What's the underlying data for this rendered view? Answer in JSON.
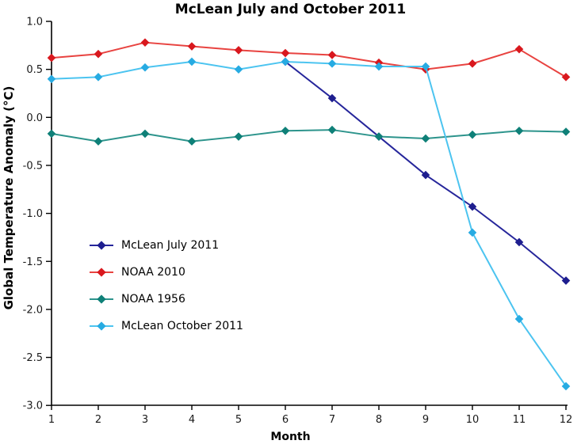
{
  "title": "McLean July and October 2011",
  "axes": {
    "x_label": "Month",
    "y_label": "Global Temperature Anomaly (°C)",
    "x_ticks": [
      "1",
      "2",
      "3",
      "4",
      "5",
      "6",
      "7",
      "8",
      "9",
      "10",
      "11",
      "12"
    ],
    "y_ticks": [
      "1.0",
      "0.5",
      "0.0",
      "-0.5",
      "-1.0",
      "-1.5",
      "-2.0",
      "-2.5",
      "-3.0"
    ]
  },
  "colors": {
    "background": "#ffffff",
    "axis": "#000000",
    "tick_label": "#1a1a1a",
    "title_text": "#000000"
  },
  "chart_data": {
    "type": "line",
    "title": "McLean July and October 2011",
    "xlabel": "Month",
    "ylabel": "Global Temperature Anomaly (°C)",
    "xlim": [
      1,
      12
    ],
    "ylim": [
      -3.0,
      1.0
    ],
    "x_tick_step": 1,
    "y_tick_step": 0.5,
    "grid": false,
    "legend_position": "center-left-inside",
    "marker": "diamond",
    "x": [
      1,
      2,
      3,
      4,
      5,
      6,
      7,
      8,
      9,
      10,
      11,
      12
    ],
    "series": [
      {
        "name": "McLean July 2011",
        "line_color": "#26269B",
        "marker_color": "#1E1E8F",
        "x": [
          6,
          7,
          8,
          9,
          10,
          11,
          12
        ],
        "values": [
          0.58,
          0.2,
          -0.2,
          -0.6,
          -0.93,
          -1.3,
          -1.7
        ]
      },
      {
        "name": "NOAA 2010",
        "line_color": "#E84340",
        "marker_color": "#D9181E",
        "x": [
          1,
          2,
          3,
          4,
          5,
          6,
          7,
          8,
          9,
          10,
          11,
          12
        ],
        "values": [
          0.62,
          0.66,
          0.78,
          0.74,
          0.7,
          0.67,
          0.65,
          0.57,
          0.5,
          0.56,
          0.71,
          0.42
        ]
      },
      {
        "name": "NOAA 1956",
        "line_color": "#2D948C",
        "marker_color": "#0F8078",
        "x": [
          1,
          2,
          3,
          4,
          5,
          6,
          7,
          8,
          9,
          10,
          11,
          12
        ],
        "values": [
          -0.17,
          -0.25,
          -0.17,
          -0.25,
          -0.2,
          -0.14,
          -0.13,
          -0.2,
          -0.22,
          -0.18,
          -0.14,
          -0.15
        ]
      },
      {
        "name": "McLean October 2011",
        "line_color": "#4CC4F0",
        "marker_color": "#27ABE2",
        "x": [
          1,
          2,
          3,
          4,
          5,
          6,
          7,
          8,
          9,
          10,
          11,
          12
        ],
        "values": [
          0.4,
          0.42,
          0.52,
          0.58,
          0.5,
          0.58,
          0.56,
          0.53,
          0.53,
          -1.2,
          -2.1,
          -2.8
        ]
      }
    ]
  }
}
